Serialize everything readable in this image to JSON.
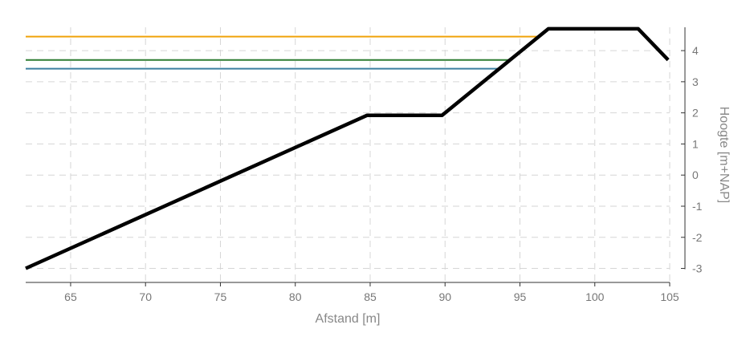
{
  "chart_data": {
    "type": "line",
    "xlabel": "Afstand [m]",
    "ylabel": "Hoogte [m+NAP]",
    "xlim": [
      62,
      105
    ],
    "ylim": [
      -3.45,
      4.75
    ],
    "x_ticks": [
      65,
      70,
      75,
      80,
      85,
      90,
      95,
      100,
      105
    ],
    "y_ticks": [
      -3,
      -2,
      -1,
      0,
      1,
      2,
      3,
      4
    ],
    "grid": true,
    "profile": {
      "color": "#000000",
      "points": [
        {
          "x": 62.0,
          "y": -3.0
        },
        {
          "x": 84.8,
          "y": 1.92
        },
        {
          "x": 89.8,
          "y": 1.92
        },
        {
          "x": 96.9,
          "y": 4.7
        },
        {
          "x": 102.9,
          "y": 4.7
        },
        {
          "x": 104.9,
          "y": 3.7
        }
      ]
    },
    "levels": [
      {
        "y": 4.45,
        "x_start": 62,
        "x_end": 96.3,
        "color": "#f0a30a"
      },
      {
        "y": 3.7,
        "x_start": 62,
        "x_end": 94.4,
        "color": "#2e7d32"
      },
      {
        "y": 3.42,
        "x_start": 62,
        "x_end": 93.6,
        "color": "#3b7fa0"
      }
    ]
  }
}
